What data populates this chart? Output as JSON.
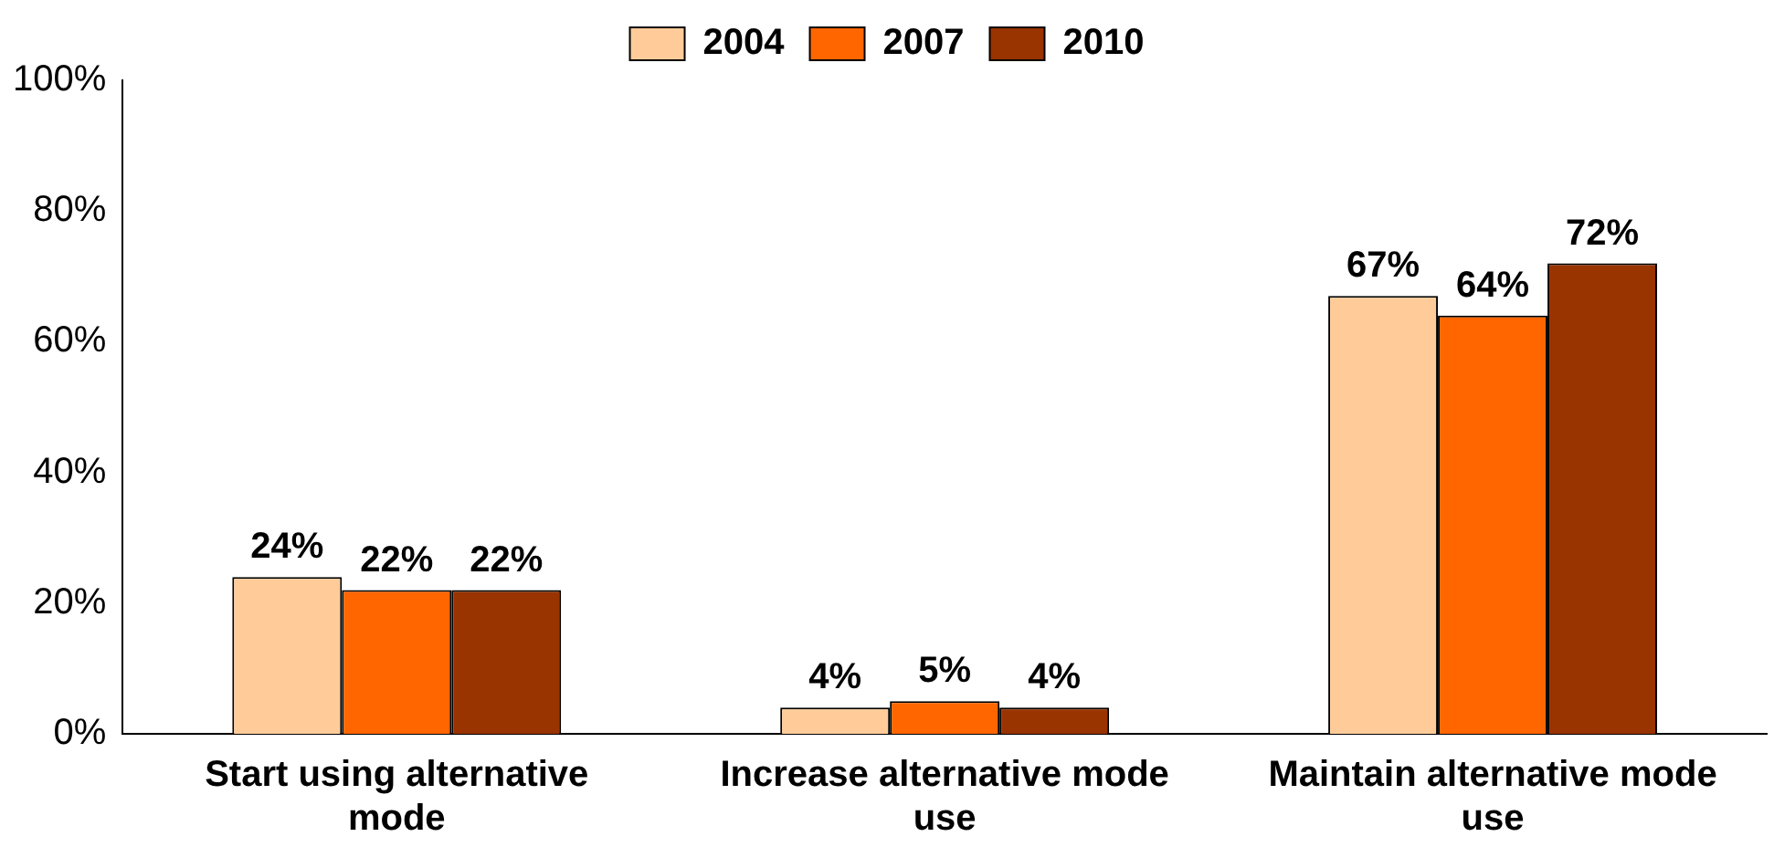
{
  "chart_data": {
    "type": "bar",
    "categories": [
      "Start using alternative mode",
      "Increase alternative mode use",
      "Maintain alternative mode use"
    ],
    "series": [
      {
        "name": "2004",
        "color": "#ffcc99",
        "values": [
          24,
          4,
          67
        ],
        "value_labels": [
          "24%",
          "4%",
          "67%"
        ]
      },
      {
        "name": "2007",
        "color": "#ff6600",
        "values": [
          22,
          5,
          64
        ],
        "value_labels": [
          "22%",
          "5%",
          "64%"
        ]
      },
      {
        "name": "2010",
        "color": "#993300",
        "values": [
          22,
          4,
          72
        ],
        "value_labels": [
          "22%",
          "4%",
          "72%"
        ]
      }
    ],
    "ylim": [
      0,
      100
    ],
    "yticks": [
      {
        "value": 0,
        "label": "0%"
      },
      {
        "value": 20,
        "label": "20%"
      },
      {
        "value": 40,
        "label": "40%"
      },
      {
        "value": 60,
        "label": "60%"
      },
      {
        "value": 80,
        "label": "80%"
      },
      {
        "value": 100,
        "label": "100%"
      }
    ],
    "grid": false,
    "legend": "top"
  }
}
